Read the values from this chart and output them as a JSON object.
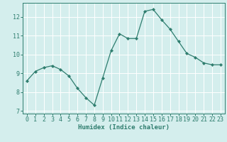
{
  "x": [
    0,
    1,
    2,
    3,
    4,
    5,
    6,
    7,
    8,
    9,
    10,
    11,
    12,
    13,
    14,
    15,
    16,
    17,
    18,
    19,
    20,
    21,
    22,
    23
  ],
  "y": [
    8.6,
    9.1,
    9.3,
    9.4,
    9.2,
    8.85,
    8.2,
    7.7,
    7.3,
    8.75,
    10.2,
    11.1,
    10.85,
    10.85,
    12.3,
    12.4,
    11.85,
    11.35,
    10.7,
    10.05,
    9.85,
    9.55,
    9.45,
    9.45
  ],
  "line_color": "#2e7d6e",
  "marker": "D",
  "marker_size": 2.2,
  "bg_color": "#d4eeed",
  "grid_color": "#ffffff",
  "xlabel": "Humidex (Indice chaleur)",
  "xlim": [
    -0.5,
    23.5
  ],
  "ylim": [
    6.85,
    12.75
  ],
  "yticks": [
    7,
    8,
    9,
    10,
    11,
    12
  ],
  "xticks": [
    0,
    1,
    2,
    3,
    4,
    5,
    6,
    7,
    8,
    9,
    10,
    11,
    12,
    13,
    14,
    15,
    16,
    17,
    18,
    19,
    20,
    21,
    22,
    23
  ],
  "xtick_labels": [
    "0",
    "1",
    "2",
    "3",
    "4",
    "5",
    "6",
    "7",
    "8",
    "9",
    "10",
    "11",
    "12",
    "13",
    "14",
    "15",
    "16",
    "17",
    "18",
    "19",
    "20",
    "21",
    "22",
    "23"
  ],
  "spine_color": "#2e7d6e",
  "tick_color": "#2e7d6e",
  "label_fontsize": 6.5,
  "tick_fontsize": 6.0,
  "linewidth": 0.9
}
